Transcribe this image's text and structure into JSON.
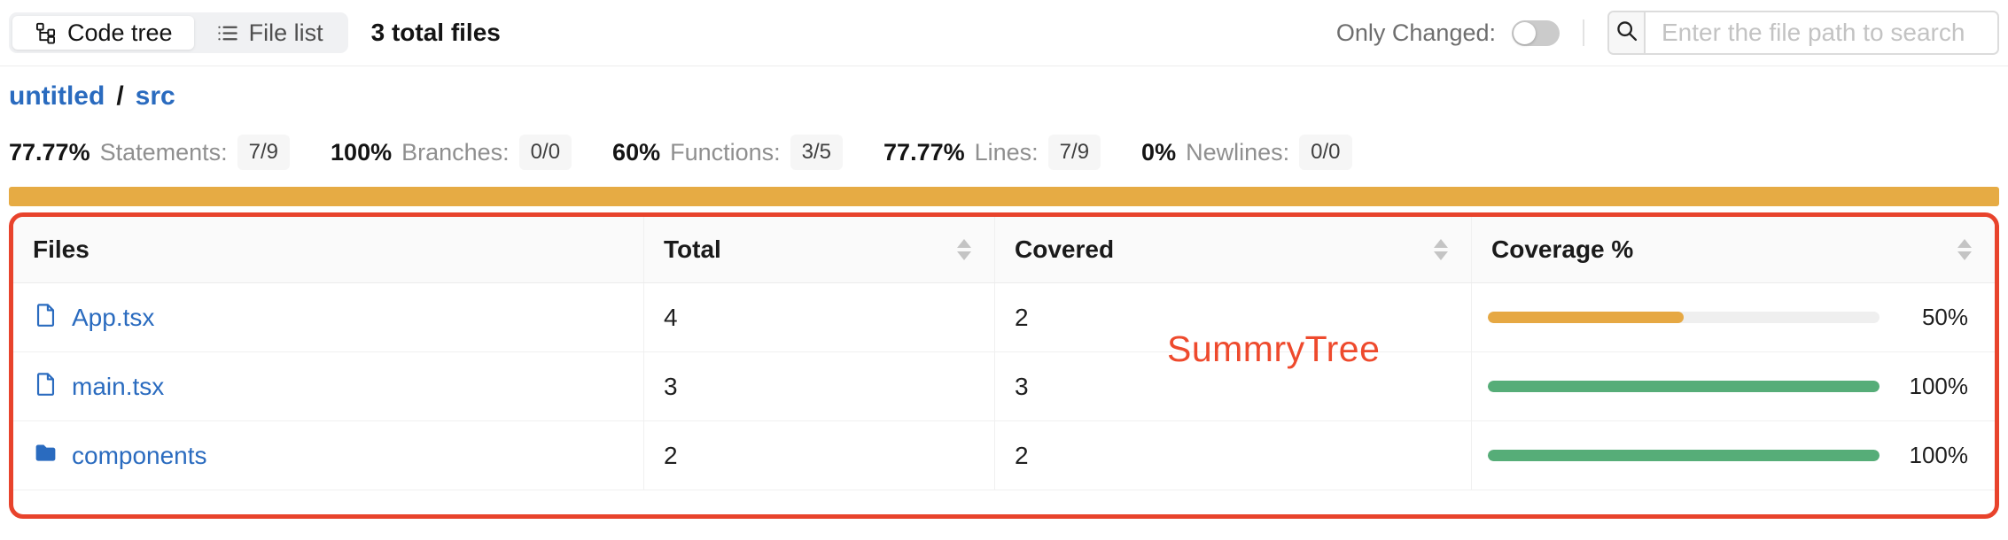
{
  "toolbar": {
    "view_modes": [
      {
        "label": "Code tree",
        "icon": "tree-icon",
        "active": true
      },
      {
        "label": "File list",
        "icon": "list-icon",
        "active": false
      }
    ],
    "total_files_label": "3 total files",
    "only_changed_label": "Only Changed:",
    "only_changed_on": false,
    "search": {
      "placeholder": "Enter the file path to search",
      "icon": "search-icon"
    }
  },
  "breadcrumb": {
    "items": [
      "untitled",
      "src"
    ],
    "separator": "/"
  },
  "summary_stats": [
    {
      "percent": "77.77%",
      "label": "Statements:",
      "fraction": "7/9"
    },
    {
      "percent": "100%",
      "label": "Branches:",
      "fraction": "0/0"
    },
    {
      "percent": "60%",
      "label": "Functions:",
      "fraction": "3/5"
    },
    {
      "percent": "77.77%",
      "label": "Lines:",
      "fraction": "7/9"
    },
    {
      "percent": "0%",
      "label": "Newlines:",
      "fraction": "0/0"
    }
  ],
  "overall": {
    "bar_color": "#e6ab44"
  },
  "table": {
    "columns": [
      {
        "label": "Files",
        "sortable": false
      },
      {
        "label": "Total",
        "sortable": true
      },
      {
        "label": "Covered",
        "sortable": true
      },
      {
        "label": "Coverage %",
        "sortable": true
      }
    ],
    "rows": [
      {
        "name": "App.tsx",
        "icon": "file-icon",
        "total": "4",
        "covered": "2",
        "coverage_percent": 50,
        "coverage_label": "50%",
        "bar_color": "#e6a843"
      },
      {
        "name": "main.tsx",
        "icon": "file-icon",
        "total": "3",
        "covered": "3",
        "coverage_percent": 100,
        "coverage_label": "100%",
        "bar_color": "#56ad78"
      },
      {
        "name": "components",
        "icon": "folder-icon",
        "total": "2",
        "covered": "2",
        "coverage_percent": 100,
        "coverage_label": "100%",
        "bar_color": "#56ad78"
      }
    ]
  },
  "annotation": {
    "label": "SummryTree",
    "color": "#ee4a2d",
    "box_color": "#e8432c"
  },
  "colors": {
    "link": "#2a6bbf",
    "accent_orange": "#e6ab44",
    "accent_green": "#56ad78"
  }
}
